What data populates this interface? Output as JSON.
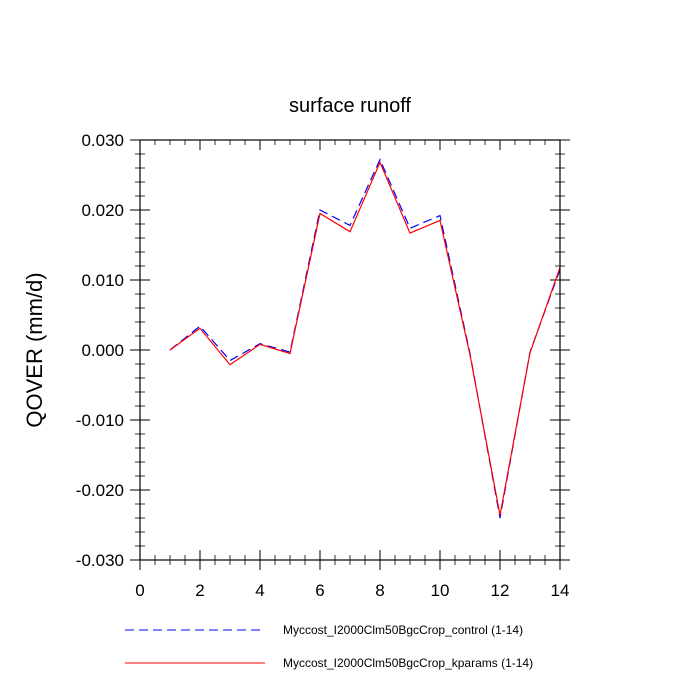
{
  "chart_data": {
    "type": "line",
    "title": "surface runoff",
    "xlabel": "",
    "ylabel": "QOVER  (mm/d)",
    "xlim": [
      0,
      14
    ],
    "ylim": [
      -0.03,
      0.03
    ],
    "x_ticks": [
      0,
      2,
      4,
      6,
      8,
      10,
      12,
      14
    ],
    "x_tick_labels": [
      "0",
      "2",
      "4",
      "6",
      "8",
      "10",
      "12",
      "14"
    ],
    "y_ticks": [
      -0.03,
      -0.02,
      -0.01,
      0.0,
      0.01,
      0.02,
      0.03
    ],
    "y_tick_labels": [
      "-0.030",
      "-0.020",
      "-0.010",
      "0.000",
      "0.010",
      "0.020",
      "0.030"
    ],
    "grid": false,
    "legend_position": "bottom",
    "x": [
      1,
      2,
      3,
      4,
      5,
      6,
      7,
      8,
      9,
      10,
      11,
      12,
      13,
      14
    ],
    "series": [
      {
        "name": "Myccost_I2000Clm50BgcCrop_control (1-14)",
        "color": "#0000ff",
        "dash": "dashed",
        "values": [
          0.0,
          0.0034,
          -0.0015,
          0.0009,
          -0.0003,
          0.02,
          0.0178,
          0.0272,
          0.0174,
          0.0192,
          -0.0005,
          -0.024,
          -0.0003,
          0.0115
        ]
      },
      {
        "name": "Myccost_I2000Clm50BgcCrop_kparams (1-14)",
        "color": "#ff0000",
        "dash": "solid",
        "values": [
          0.0,
          0.0031,
          -0.0021,
          0.0008,
          -0.0005,
          0.0195,
          0.0169,
          0.0268,
          0.0167,
          0.0185,
          -0.0007,
          -0.0236,
          -0.0004,
          0.0118
        ]
      }
    ]
  }
}
